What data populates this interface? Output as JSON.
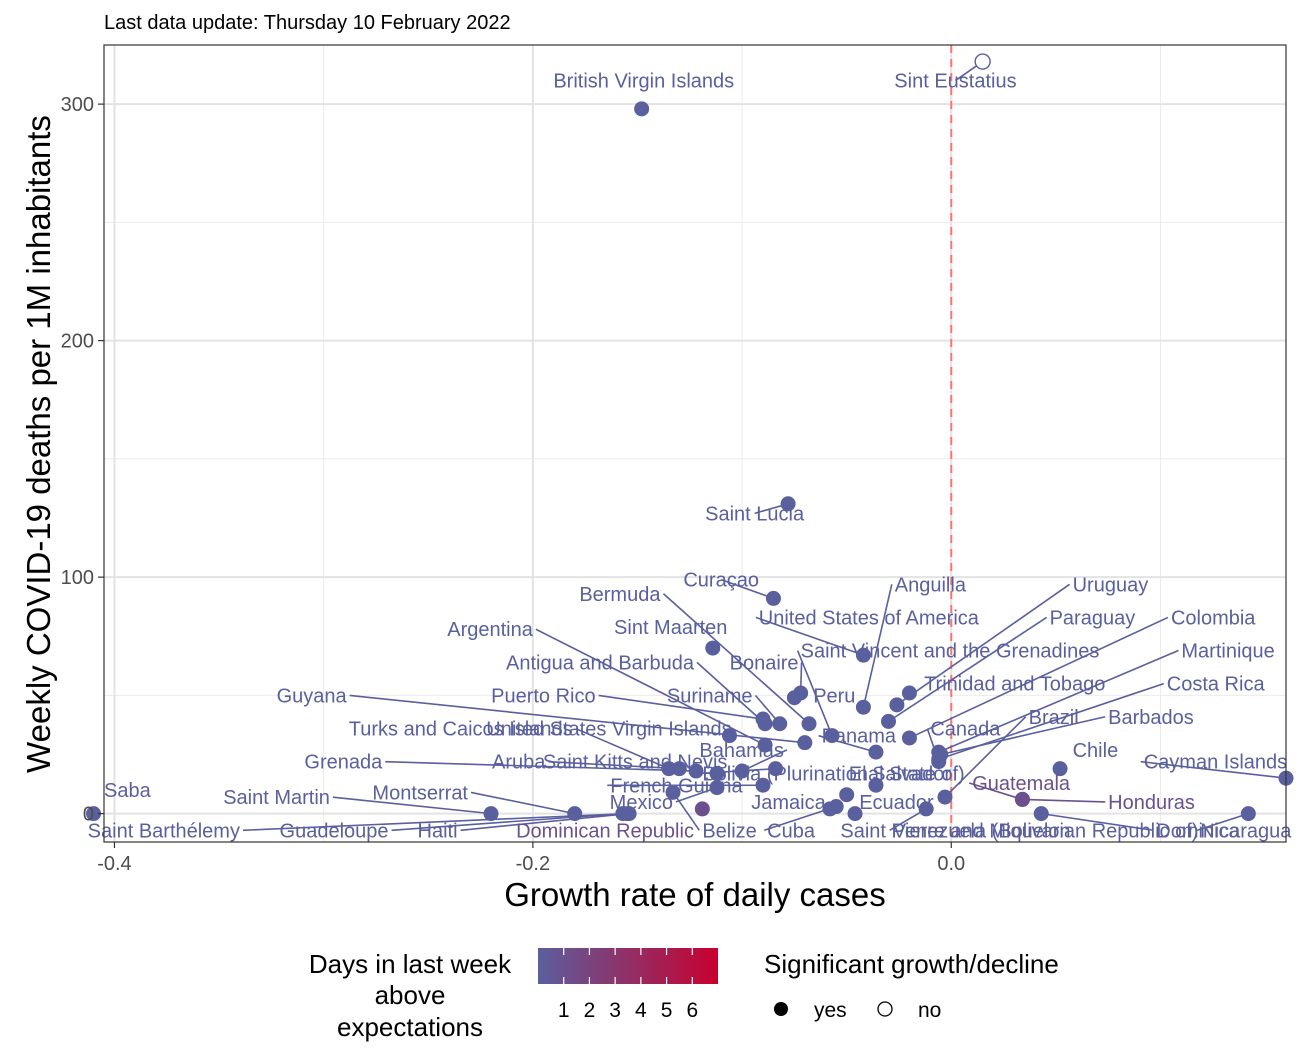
{
  "chart_data": {
    "type": "scatter",
    "subtitle": "Last data update: Thursday 10 February 2022",
    "xlabel": "Growth rate of daily cases",
    "ylabel": "Weekly COVID-19 deaths per 1M inhabitants",
    "xlim": [
      -0.405,
      0.16
    ],
    "ylim": [
      -12,
      325
    ],
    "x_ticks": [
      -0.4,
      -0.2,
      0.0
    ],
    "x_tick_labels": [
      "-0.4",
      "-0.2",
      "0.0"
    ],
    "y_ticks": [
      0,
      100,
      200,
      300
    ],
    "y_tick_labels": [
      "0",
      "100",
      "200",
      "300"
    ],
    "reference_line": {
      "x": 0.0,
      "color": "#f8766d",
      "style": "dashed"
    },
    "grid": true,
    "legend": {
      "position": "bottom",
      "color_title": "Days in last week above expectations",
      "color_title_lines": [
        "Days in last week",
        "above",
        "expectations"
      ],
      "color_ticks": [
        "1",
        "2",
        "3",
        "4",
        "5",
        "6"
      ],
      "color_low": "#5a5f9e",
      "color_high": "#c8002e",
      "shape_title": "Significant growth/decline",
      "shape_items": [
        {
          "label": "yes",
          "filled": true
        },
        {
          "label": "no",
          "filled": false
        }
      ]
    },
    "points": [
      {
        "name": "Saba",
        "x": -0.41,
        "y": 0,
        "days": 0,
        "sig": true
      },
      {
        "name": "Saint Martin",
        "x": -0.22,
        "y": 0,
        "days": 0,
        "sig": true
      },
      {
        "name": "Montserrat",
        "x": -0.18,
        "y": 0,
        "days": 0,
        "sig": true
      },
      {
        "name": "Saint Barthélemy",
        "x": -0.155,
        "y": 0,
        "days": 0,
        "sig": true
      },
      {
        "name": "Guadeloupe",
        "x": -0.157,
        "y": 0,
        "days": 0,
        "sig": true
      },
      {
        "name": "Haiti",
        "x": -0.154,
        "y": 0,
        "days": 0,
        "sig": true
      },
      {
        "name": "Dominican Republic",
        "x": -0.119,
        "y": 2,
        "days": 1,
        "sig": true
      },
      {
        "name": "British Virgin Islands",
        "x": -0.148,
        "y": 298,
        "days": 0,
        "sig": true
      },
      {
        "name": "Sint Eustatius",
        "x": 0.015,
        "y": 318,
        "days": 0,
        "sig": false
      },
      {
        "name": "Saint Lucia",
        "x": -0.078,
        "y": 131,
        "days": 0,
        "sig": true
      },
      {
        "name": "Curaçao",
        "x": -0.085,
        "y": 91,
        "days": 0,
        "sig": true
      },
      {
        "name": "Sint Maarten",
        "x": -0.114,
        "y": 70,
        "days": 0,
        "sig": true
      },
      {
        "name": "Bermuda",
        "x": -0.068,
        "y": 38,
        "days": 0,
        "sig": true
      },
      {
        "name": "Argentina",
        "x": -0.089,
        "y": 29,
        "days": 0,
        "sig": true
      },
      {
        "name": "Antigua and Barbuda",
        "x": -0.089,
        "y": 38,
        "days": 0,
        "sig": true
      },
      {
        "name": "Bonaire",
        "x": -0.072,
        "y": 51,
        "days": 0,
        "sig": true
      },
      {
        "name": "Peru",
        "x": -0.075,
        "y": 49,
        "days": 0,
        "sig": true
      },
      {
        "name": "Puerto Rico",
        "x": -0.09,
        "y": 40,
        "days": 0,
        "sig": true
      },
      {
        "name": "Suriname",
        "x": -0.082,
        "y": 38,
        "days": 0,
        "sig": true
      },
      {
        "name": "United States Virgin Islands",
        "x": -0.106,
        "y": 33,
        "days": 0,
        "sig": true
      },
      {
        "name": "Guyana",
        "x": -0.07,
        "y": 30,
        "days": 0,
        "sig": true
      },
      {
        "name": "Turks and Caicos Islands",
        "x": -0.135,
        "y": 19,
        "days": 0,
        "sig": true
      },
      {
        "name": "Grenada",
        "x": -0.122,
        "y": 18,
        "days": 0,
        "sig": true
      },
      {
        "name": "Aruba",
        "x": -0.13,
        "y": 19,
        "days": 0,
        "sig": true
      },
      {
        "name": "Saint Kitts and Nevis",
        "x": -0.112,
        "y": 17,
        "days": 0,
        "sig": true
      },
      {
        "name": "Bahamas",
        "x": -0.1,
        "y": 18,
        "days": 0,
        "sig": true
      },
      {
        "name": "Bolivia (Plurinational State of)",
        "x": -0.084,
        "y": 19,
        "days": 0,
        "sig": true
      },
      {
        "name": "French Guiana",
        "x": -0.09,
        "y": 12,
        "days": 0,
        "sig": true
      },
      {
        "name": "Mexico",
        "x": -0.112,
        "y": 11,
        "days": 0,
        "sig": true
      },
      {
        "name": "Belize",
        "x": -0.133,
        "y": 9,
        "days": 0,
        "sig": true
      },
      {
        "name": "Jamaica",
        "x": -0.05,
        "y": 8,
        "days": 0,
        "sig": true
      },
      {
        "name": "Cuba",
        "x": -0.055,
        "y": 3,
        "days": 0,
        "sig": true
      },
      {
        "name": "Saint Pierre and Miquelon",
        "x": -0.058,
        "y": 2,
        "days": 0,
        "sig": true
      },
      {
        "name": "Ecuador",
        "x": -0.046,
        "y": 0,
        "days": 0,
        "sig": true
      },
      {
        "name": "Venezuela (Bolivarian Republic of)",
        "x": -0.012,
        "y": 2,
        "days": 0,
        "sig": true
      },
      {
        "name": "El Salvador",
        "x": -0.036,
        "y": 12,
        "days": 0,
        "sig": true
      },
      {
        "name": "Panama",
        "x": -0.036,
        "y": 26,
        "days": 0,
        "sig": true
      },
      {
        "name": "United States of America",
        "x": -0.042,
        "y": 67,
        "days": 0,
        "sig": true
      },
      {
        "name": "Anguilla",
        "x": -0.042,
        "y": 45,
        "days": 0,
        "sig": true
      },
      {
        "name": "Saint Vincent and the Grenadines",
        "x": -0.057,
        "y": 33,
        "days": 0,
        "sig": true
      },
      {
        "name": "Uruguay",
        "x": -0.026,
        "y": 46,
        "days": 0,
        "sig": true
      },
      {
        "name": "Paraguay",
        "x": -0.03,
        "y": 39,
        "days": 0,
        "sig": true
      },
      {
        "name": "Trinidad and Tobago",
        "x": -0.02,
        "y": 51,
        "days": 0,
        "sig": true
      },
      {
        "name": "Colombia",
        "x": -0.02,
        "y": 32,
        "days": 0,
        "sig": true
      },
      {
        "name": "Martinique",
        "x": -0.006,
        "y": 26,
        "days": 0,
        "sig": true
      },
      {
        "name": "Costa Rica",
        "x": -0.006,
        "y": 23,
        "days": 0,
        "sig": true
      },
      {
        "name": "Canada",
        "x": -0.006,
        "y": 22,
        "days": 0,
        "sig": true
      },
      {
        "name": "Brazil",
        "x": -0.003,
        "y": 7,
        "days": 0,
        "sig": true
      },
      {
        "name": "Barbados",
        "x": -0.005,
        "y": 25,
        "days": 0,
        "sig": true
      },
      {
        "name": "Chile",
        "x": 0.052,
        "y": 19,
        "days": 0,
        "sig": true
      },
      {
        "name": "Guatemala",
        "x": 0.034,
        "y": 6,
        "days": 1,
        "sig": true
      },
      {
        "name": "Honduras",
        "x": 0.034,
        "y": 6,
        "days": 1,
        "sig": true
      },
      {
        "name": "Cayman Islands",
        "x": 0.16,
        "y": 15,
        "days": 0,
        "sig": true
      },
      {
        "name": "Nicaragua",
        "x": 0.142,
        "y": 0,
        "days": 0,
        "sig": true
      },
      {
        "name": "Dominica",
        "x": 0.043,
        "y": 0,
        "days": 0,
        "sig": true
      }
    ],
    "labels": [
      {
        "name": "Saba",
        "lx": -0.405,
        "ly": 7,
        "anchor": "start"
      },
      {
        "name": "Saint Martin",
        "lx": -0.297,
        "ly": 4,
        "anchor": "end"
      },
      {
        "name": "Montserrat",
        "lx": -0.231,
        "ly": 6,
        "anchor": "end"
      },
      {
        "name": "Saint Barthélemy",
        "lx": -0.34,
        "ly": -10,
        "anchor": "end"
      },
      {
        "name": "Guadeloupe",
        "lx": -0.269,
        "ly": -10,
        "anchor": "end"
      },
      {
        "name": "Haiti",
        "lx": -0.236,
        "ly": -10,
        "anchor": "end"
      },
      {
        "name": "Dominican Republic",
        "lx": -0.123,
        "ly": -10,
        "anchor": "end"
      },
      {
        "name": "British Virgin Islands",
        "lx": -0.147,
        "ly": 307,
        "anchor": "middle"
      },
      {
        "name": "Sint Eustatius",
        "lx": 0.002,
        "ly": 307,
        "anchor": "middle"
      },
      {
        "name": "Saint Lucia",
        "lx": -0.094,
        "ly": 124,
        "anchor": "middle"
      },
      {
        "name": "Curaçao",
        "lx": -0.11,
        "ly": 96,
        "anchor": "middle"
      },
      {
        "name": "Bermuda",
        "lx": -0.139,
        "ly": 90,
        "anchor": "end"
      },
      {
        "name": "Sint Maarten",
        "lx": -0.107,
        "ly": 76,
        "anchor": "end"
      },
      {
        "name": "Argentina",
        "lx": -0.2,
        "ly": 75,
        "anchor": "end"
      },
      {
        "name": "Antigua and Barbuda",
        "lx": -0.123,
        "ly": 61,
        "anchor": "end"
      },
      {
        "name": "Bonaire",
        "lx": -0.073,
        "ly": 61,
        "anchor": "end"
      },
      {
        "name": "Peru",
        "lx": -0.066,
        "ly": 47,
        "anchor": "start"
      },
      {
        "name": "Puerto Rico",
        "lx": -0.17,
        "ly": 47,
        "anchor": "end"
      },
      {
        "name": "Suriname",
        "lx": -0.095,
        "ly": 47,
        "anchor": "end"
      },
      {
        "name": "United States Virgin Islands",
        "lx": -0.105,
        "ly": 33,
        "anchor": "end"
      },
      {
        "name": "Guyana",
        "lx": -0.289,
        "ly": 47,
        "anchor": "end"
      },
      {
        "name": "Turks and Caicos Islands",
        "lx": -0.181,
        "ly": 33,
        "anchor": "end"
      },
      {
        "name": "Grenada",
        "lx": -0.272,
        "ly": 19,
        "anchor": "end"
      },
      {
        "name": "Aruba",
        "lx": -0.194,
        "ly": 19,
        "anchor": "end"
      },
      {
        "name": "Saint Kitts and Nevis",
        "lx": -0.107,
        "ly": 19,
        "anchor": "end"
      },
      {
        "name": "Bahamas",
        "lx": -0.08,
        "ly": 24,
        "anchor": "end"
      },
      {
        "name": "Bolivia (Plurinational State of)",
        "lx": -0.119,
        "ly": 14,
        "anchor": "start"
      },
      {
        "name": "French Guiana",
        "lx": -0.163,
        "ly": 9,
        "anchor": "start"
      },
      {
        "name": "Mexico",
        "lx": -0.133,
        "ly": 2,
        "anchor": "end"
      },
      {
        "name": "Belize",
        "lx": -0.119,
        "ly": -10,
        "anchor": "start"
      },
      {
        "name": "Jamaica",
        "lx": -0.06,
        "ly": 2,
        "anchor": "end"
      },
      {
        "name": "Cuba",
        "lx": -0.088,
        "ly": -10,
        "anchor": "start"
      },
      {
        "name": "Saint Pierre and Miquelon",
        "lx": -0.053,
        "ly": -10,
        "anchor": "start"
      },
      {
        "name": "Ecuador",
        "lx": -0.044,
        "ly": 2,
        "anchor": "start"
      },
      {
        "name": "Venezuela (Bolivarian Republic of)",
        "lx": -0.028,
        "ly": -10,
        "anchor": "start"
      },
      {
        "name": "El Salvador",
        "lx": -0.049,
        "ly": 14,
        "anchor": "start"
      },
      {
        "name": "Panama",
        "lx": -0.062,
        "ly": 30,
        "anchor": "start"
      },
      {
        "name": "United States of America",
        "lx": -0.092,
        "ly": 80,
        "anchor": "start"
      },
      {
        "name": "Anguilla",
        "lx": -0.027,
        "ly": 94,
        "anchor": "start"
      },
      {
        "name": "Saint Vincent and the Grenadines",
        "lx": -0.072,
        "ly": 66,
        "anchor": "start"
      },
      {
        "name": "Uruguay",
        "lx": 0.058,
        "ly": 94,
        "anchor": "start"
      },
      {
        "name": "Paraguay",
        "lx": 0.047,
        "ly": 80,
        "anchor": "start"
      },
      {
        "name": "Trinidad and Tobago",
        "lx": -0.013,
        "ly": 52,
        "anchor": "start"
      },
      {
        "name": "Colombia",
        "lx": 0.105,
        "ly": 80,
        "anchor": "start"
      },
      {
        "name": "Martinique",
        "lx": 0.11,
        "ly": 66,
        "anchor": "start"
      },
      {
        "name": "Costa Rica",
        "lx": 0.103,
        "ly": 52,
        "anchor": "start"
      },
      {
        "name": "Canada",
        "lx": -0.01,
        "ly": 33,
        "anchor": "start"
      },
      {
        "name": "Brazil",
        "lx": 0.037,
        "ly": 38,
        "anchor": "start"
      },
      {
        "name": "Barbados",
        "lx": 0.075,
        "ly": 38,
        "anchor": "start"
      },
      {
        "name": "Chile",
        "lx": 0.058,
        "ly": 24,
        "anchor": "start"
      },
      {
        "name": "Guatemala",
        "lx": 0.01,
        "ly": 10,
        "anchor": "start"
      },
      {
        "name": "Honduras",
        "lx": 0.075,
        "ly": 2,
        "anchor": "start"
      },
      {
        "name": "Cayman Islands",
        "lx": 0.092,
        "ly": 19,
        "anchor": "start"
      },
      {
        "name": "Nicaragua",
        "lx": 0.119,
        "ly": -10,
        "anchor": "start"
      },
      {
        "name": "Dominica",
        "lx": 0.098,
        "ly": -10,
        "anchor": "start"
      }
    ]
  }
}
